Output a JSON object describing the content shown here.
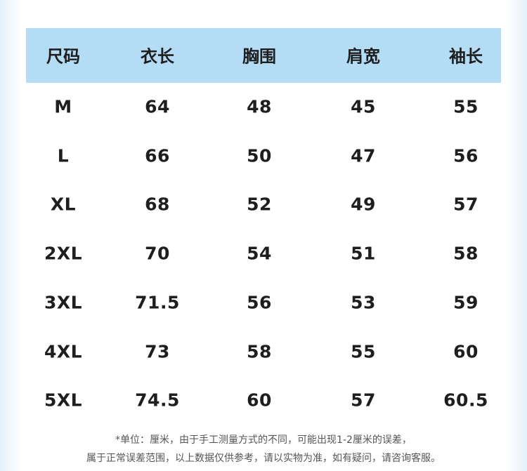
{
  "table": {
    "headers": [
      "尺码",
      "衣长",
      "胸围",
      "肩宽",
      "袖长"
    ],
    "rows": [
      [
        "M",
        "64",
        "48",
        "45",
        "55"
      ],
      [
        "L",
        "66",
        "50",
        "47",
        "56"
      ],
      [
        "XL",
        "68",
        "52",
        "49",
        "57"
      ],
      [
        "2XL",
        "70",
        "54",
        "51",
        "58"
      ],
      [
        "3XL",
        "71.5",
        "56",
        "53",
        "59"
      ],
      [
        "4XL",
        "73",
        "58",
        "55",
        "60"
      ],
      [
        "5XL",
        "74.5",
        "60",
        "57",
        "60.5"
      ]
    ]
  },
  "notes": [
    "*单位：厘米，由于手工测量方式的不同，可能出现1-2厘米的误差，",
    "属于正常误差范围，以上数据仅供参考，请以实物为准，如有疑问，请咨询客服。"
  ]
}
